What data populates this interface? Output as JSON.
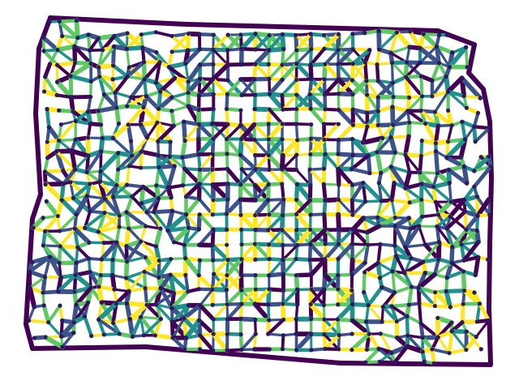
{
  "graph": {
    "node_color": "#2b1a63",
    "edge_palette": [
      "#440154",
      "#3b528b",
      "#21918c",
      "#5ec962",
      "#fde725"
    ],
    "grid_rows": 24,
    "grid_cols": 34
  }
}
